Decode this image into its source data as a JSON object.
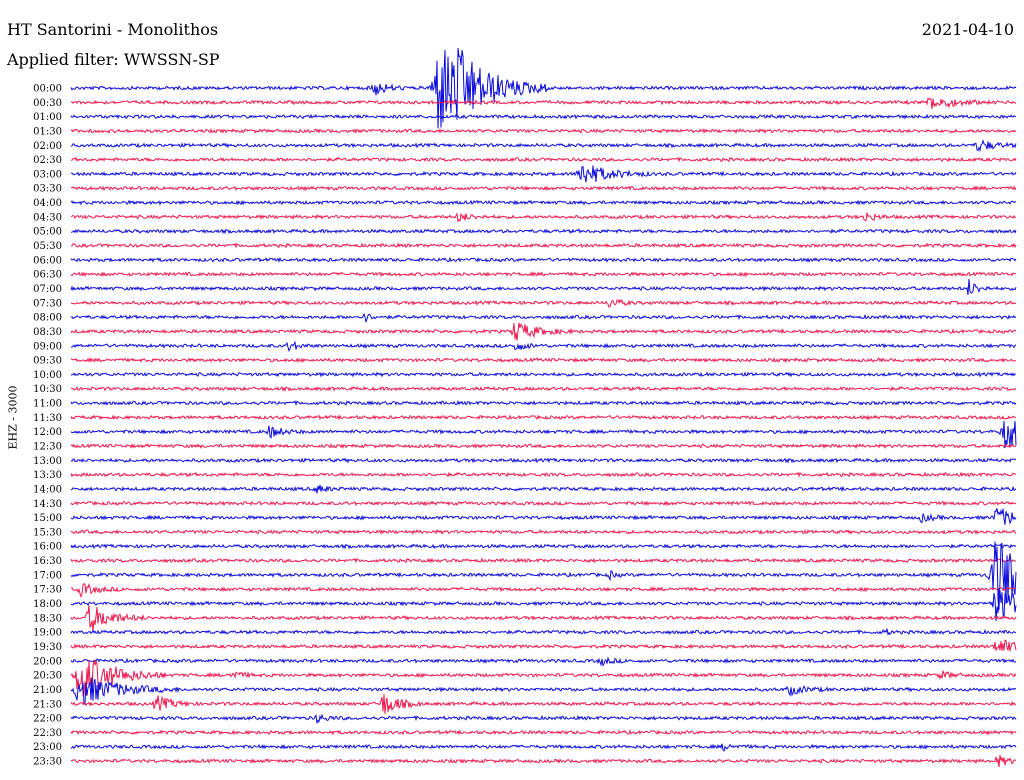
{
  "header": {
    "station": "HT Santorini - Monolithos",
    "filter": "Applied filter: WWSSN-SP",
    "date": "2021-04-10",
    "channel": "EHZ - 3000"
  },
  "colors": {
    "blue": "#0a0adc",
    "red": "#f0174c"
  },
  "chart_data": {
    "type": "line",
    "description_type": "helicorder",
    "rows": [
      {
        "label": "00:00",
        "color": "blue",
        "events": [
          [
            0.32,
            8,
            0.012
          ],
          [
            0.39,
            48,
            0.04
          ],
          [
            0.41,
            12,
            0.02
          ]
        ]
      },
      {
        "label": "00:30",
        "color": "red",
        "events": [
          [
            0.91,
            8,
            0.02
          ]
        ]
      },
      {
        "label": "01:00",
        "color": "blue",
        "events": []
      },
      {
        "label": "01:30",
        "color": "red",
        "events": []
      },
      {
        "label": "02:00",
        "color": "blue",
        "events": [
          [
            0.96,
            6,
            0.015
          ]
        ]
      },
      {
        "label": "02:30",
        "color": "red",
        "events": []
      },
      {
        "label": "03:00",
        "color": "blue",
        "events": [
          [
            0.54,
            12,
            0.025
          ]
        ]
      },
      {
        "label": "03:30",
        "color": "red",
        "events": []
      },
      {
        "label": "04:00",
        "color": "blue",
        "events": []
      },
      {
        "label": "04:30",
        "color": "red",
        "events": [
          [
            0.41,
            5,
            0.01
          ],
          [
            0.84,
            5,
            0.01
          ]
        ]
      },
      {
        "label": "05:00",
        "color": "blue",
        "events": []
      },
      {
        "label": "05:30",
        "color": "red",
        "events": []
      },
      {
        "label": "06:00",
        "color": "blue",
        "events": []
      },
      {
        "label": "06:30",
        "color": "red",
        "events": []
      },
      {
        "label": "07:00",
        "color": "blue",
        "events": [
          [
            0.95,
            9,
            0.008
          ]
        ]
      },
      {
        "label": "07:30",
        "color": "red",
        "events": [
          [
            0.57,
            5,
            0.01
          ]
        ]
      },
      {
        "label": "08:00",
        "color": "blue",
        "events": [
          [
            0.31,
            6,
            0.005
          ]
        ]
      },
      {
        "label": "08:30",
        "color": "red",
        "events": [
          [
            0.47,
            10,
            0.02
          ]
        ]
      },
      {
        "label": "09:00",
        "color": "blue",
        "events": [
          [
            0.23,
            6,
            0.008
          ],
          [
            0.47,
            5,
            0.01
          ]
        ]
      },
      {
        "label": "09:30",
        "color": "red",
        "events": []
      },
      {
        "label": "10:00",
        "color": "blue",
        "events": []
      },
      {
        "label": "10:30",
        "color": "red",
        "events": []
      },
      {
        "label": "11:00",
        "color": "blue",
        "events": []
      },
      {
        "label": "11:30",
        "color": "red",
        "events": []
      },
      {
        "label": "12:00",
        "color": "blue",
        "events": [
          [
            0.21,
            6,
            0.012
          ],
          [
            0.99,
            18,
            0.03
          ]
        ]
      },
      {
        "label": "12:30",
        "color": "red",
        "events": []
      },
      {
        "label": "13:00",
        "color": "blue",
        "events": []
      },
      {
        "label": "13:30",
        "color": "red",
        "events": []
      },
      {
        "label": "14:00",
        "color": "blue",
        "events": [
          [
            0.26,
            4,
            0.01
          ]
        ]
      },
      {
        "label": "14:30",
        "color": "red",
        "events": []
      },
      {
        "label": "15:00",
        "color": "blue",
        "events": [
          [
            0.9,
            4,
            0.01
          ],
          [
            0.98,
            10,
            0.02
          ]
        ]
      },
      {
        "label": "15:30",
        "color": "red",
        "events": []
      },
      {
        "label": "16:00",
        "color": "blue",
        "events": []
      },
      {
        "label": "16:30",
        "color": "red",
        "events": []
      },
      {
        "label": "17:00",
        "color": "blue",
        "events": [
          [
            0.98,
            40,
            0.04
          ],
          [
            0.57,
            4,
            0.005
          ]
        ]
      },
      {
        "label": "17:30",
        "color": "red",
        "events": [
          [
            0.01,
            6,
            0.015
          ]
        ]
      },
      {
        "label": "18:00",
        "color": "blue",
        "events": [
          [
            0.98,
            18,
            0.03
          ]
        ]
      },
      {
        "label": "18:30",
        "color": "red",
        "events": [
          [
            0.02,
            14,
            0.02
          ]
        ]
      },
      {
        "label": "19:00",
        "color": "blue",
        "events": [
          [
            0.86,
            4,
            0.005
          ]
        ]
      },
      {
        "label": "19:30",
        "color": "red",
        "events": [
          [
            0.98,
            8,
            0.02
          ]
        ]
      },
      {
        "label": "20:00",
        "color": "blue",
        "events": [
          [
            0.56,
            4,
            0.01
          ]
        ]
      },
      {
        "label": "20:30",
        "color": "red",
        "events": [
          [
            0.01,
            26,
            0.03
          ],
          [
            0.17,
            4,
            0.01
          ],
          [
            0.92,
            4,
            0.01
          ]
        ]
      },
      {
        "label": "21:00",
        "color": "blue",
        "events": [
          [
            0.01,
            16,
            0.035
          ],
          [
            0.76,
            5,
            0.015
          ]
        ]
      },
      {
        "label": "21:30",
        "color": "red",
        "events": [
          [
            0.09,
            8,
            0.015
          ],
          [
            0.33,
            12,
            0.015
          ]
        ]
      },
      {
        "label": "22:00",
        "color": "blue",
        "events": [
          [
            0.26,
            4,
            0.01
          ]
        ]
      },
      {
        "label": "22:30",
        "color": "red",
        "events": []
      },
      {
        "label": "23:00",
        "color": "blue",
        "events": [
          [
            0.69,
            3,
            0.01
          ]
        ]
      },
      {
        "label": "23:30",
        "color": "red",
        "events": [
          [
            0.98,
            6,
            0.01
          ]
        ]
      }
    ]
  }
}
